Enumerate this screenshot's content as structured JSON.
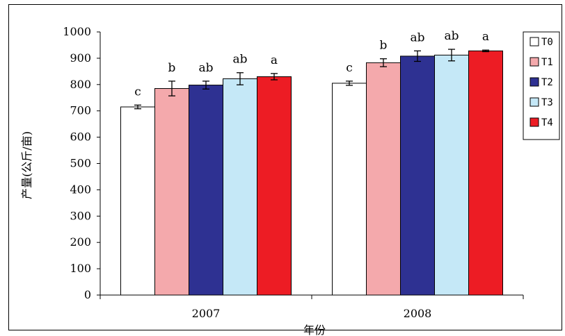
{
  "chart_data": {
    "type": "bar",
    "ylabel": "产量(公斤/亩)",
    "xlabel": "年份",
    "ylim": [
      0,
      1000
    ],
    "yticks": [
      0,
      100,
      200,
      300,
      400,
      500,
      600,
      700,
      800,
      900,
      1000
    ],
    "categories": [
      "2007",
      "2008"
    ],
    "legend_position": "top-right",
    "series": [
      {
        "name": "T0",
        "color": "#ffffff",
        "values": [
          715,
          805
        ],
        "errors": [
          7,
          8
        ],
        "letters": [
          "c",
          "c"
        ]
      },
      {
        "name": "T1",
        "color": "#f4a9ac",
        "values": [
          785,
          883
        ],
        "errors": [
          28,
          15
        ],
        "letters": [
          "b",
          "b"
        ]
      },
      {
        "name": "T2",
        "color": "#2e3192",
        "values": [
          798,
          908
        ],
        "errors": [
          15,
          20
        ],
        "letters": [
          "ab",
          "ab"
        ]
      },
      {
        "name": "T3",
        "color": "#c5e8f7",
        "values": [
          822,
          912
        ],
        "errors": [
          23,
          22
        ],
        "letters": [
          "ab",
          "ab"
        ]
      },
      {
        "name": "T4",
        "color": "#ed1c24",
        "values": [
          830,
          928
        ],
        "errors": [
          12,
          3
        ],
        "letters": [
          "a",
          "a"
        ]
      }
    ]
  }
}
